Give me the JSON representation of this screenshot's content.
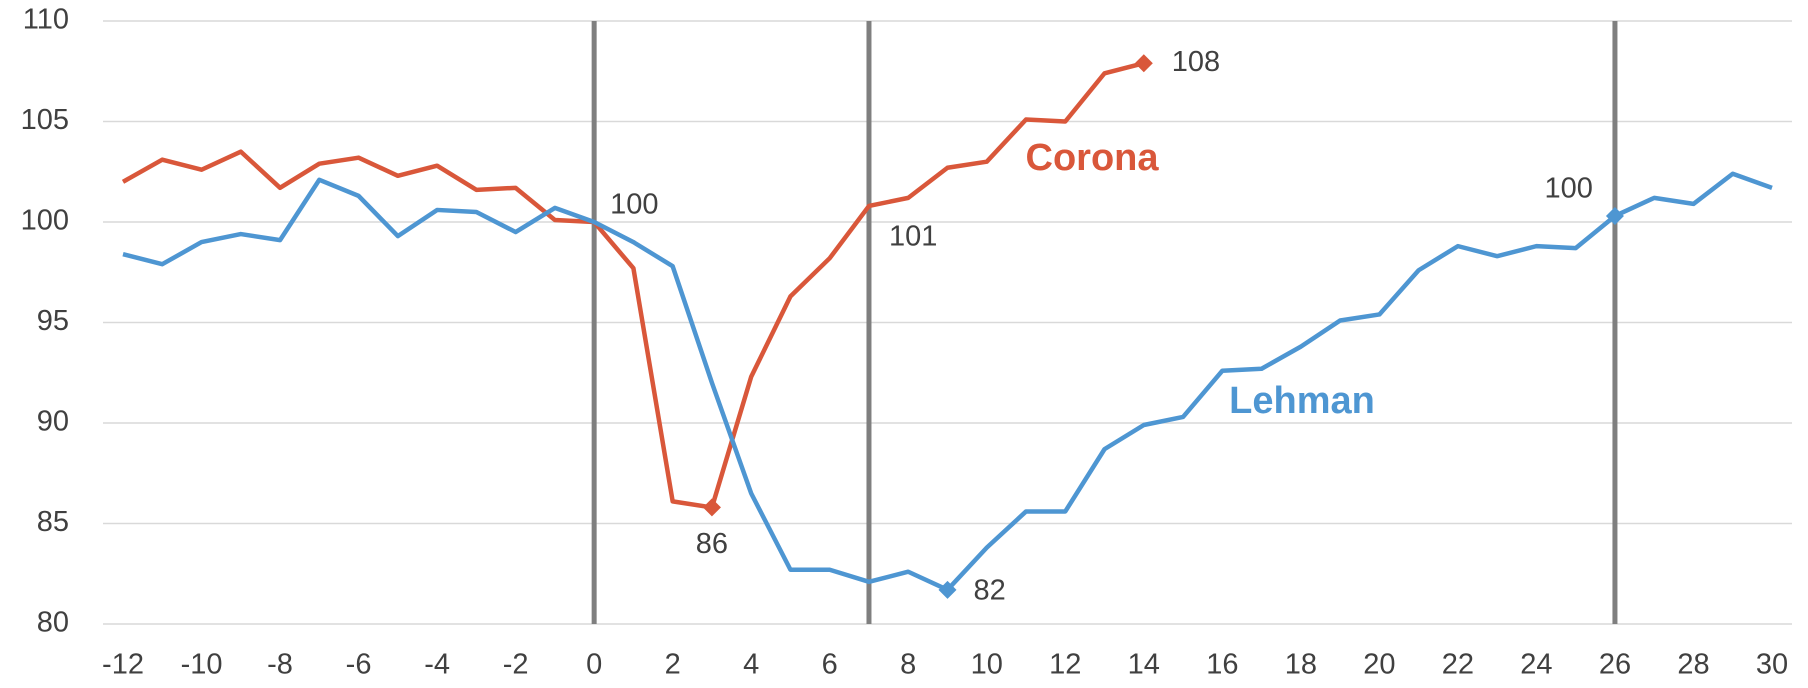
{
  "chart_data": {
    "type": "line",
    "x": [
      -12,
      -11,
      -10,
      -9,
      -8,
      -7,
      -6,
      -5,
      -4,
      -3,
      -2,
      -1,
      0,
      1,
      2,
      3,
      4,
      5,
      6,
      7,
      8,
      9,
      10,
      11,
      12,
      13,
      14,
      15,
      16,
      17,
      18,
      19,
      20,
      21,
      22,
      23,
      24,
      25,
      26,
      27,
      28,
      29,
      30
    ],
    "series": [
      {
        "name": "Corona",
        "color": "#d9573a",
        "values": [
          102.0,
          103.1,
          102.6,
          103.5,
          101.7,
          102.9,
          103.2,
          102.3,
          102.8,
          101.6,
          101.7,
          100.1,
          100.0,
          97.7,
          86.1,
          85.8,
          92.3,
          96.3,
          98.2,
          100.8,
          101.2,
          102.7,
          103.0,
          105.1,
          105.0,
          107.4,
          107.9,
          null,
          null,
          null,
          null,
          null,
          null,
          null,
          null,
          null,
          null,
          null,
          null,
          null,
          null,
          null,
          null
        ]
      },
      {
        "name": "Lehman",
        "color": "#4e96d2",
        "values": [
          98.4,
          97.9,
          99.0,
          99.4,
          99.1,
          102.1,
          101.3,
          99.3,
          100.6,
          100.5,
          99.5,
          100.7,
          100.0,
          99.0,
          97.8,
          92.0,
          86.5,
          82.7,
          82.7,
          82.1,
          82.6,
          81.7,
          83.8,
          85.6,
          85.6,
          88.7,
          89.9,
          90.3,
          92.6,
          92.7,
          93.8,
          95.1,
          95.4,
          97.6,
          98.8,
          98.3,
          98.8,
          98.7,
          100.3,
          101.2,
          100.9,
          102.4,
          101.7
        ]
      }
    ],
    "annotations": [
      {
        "text": "100",
        "series": 0,
        "index": 12
      },
      {
        "text": "86",
        "series": 0,
        "index": 15
      },
      {
        "text": "101",
        "series": 0,
        "index": 19
      },
      {
        "text": "108",
        "series": 0,
        "index": 26
      },
      {
        "text": "82",
        "series": 1,
        "index": 21
      },
      {
        "text": "100",
        "series": 1,
        "index": 38
      }
    ],
    "markers": [
      {
        "series": 0,
        "index": 15
      },
      {
        "series": 0,
        "index": 26
      },
      {
        "series": 1,
        "index": 21
      },
      {
        "series": 1,
        "index": 38
      }
    ],
    "vlines": [
      0,
      7,
      26
    ],
    "vline_color": "#7f7f7f",
    "xlim": [
      -12,
      30
    ],
    "xticks": [
      -12,
      -10,
      -8,
      -6,
      -4,
      -2,
      0,
      2,
      4,
      6,
      8,
      10,
      12,
      14,
      16,
      18,
      20,
      22,
      24,
      26,
      28,
      30
    ],
    "ylim": [
      80,
      110
    ],
    "yticks": [
      80,
      85,
      90,
      95,
      100,
      105,
      110
    ],
    "grid": true
  }
}
